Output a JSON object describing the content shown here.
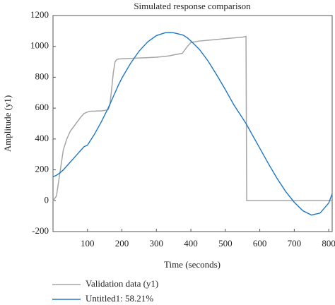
{
  "chart_data": {
    "type": "line",
    "title": "Simulated response comparison",
    "xlabel": "Time (seconds)",
    "ylabel": "Amplitude (y1)",
    "x": [
      0,
      10,
      20,
      30,
      40,
      50,
      60,
      70,
      80,
      90,
      100,
      110,
      120,
      130,
      140,
      150,
      160,
      165,
      170,
      175,
      180,
      185,
      190,
      200,
      225,
      250,
      275,
      300,
      325,
      340,
      350,
      375,
      380,
      390,
      400,
      425,
      450,
      475,
      500,
      525,
      550,
      560,
      562,
      575,
      600,
      625,
      650,
      675,
      700,
      725,
      750,
      775,
      800,
      810
    ],
    "series": [
      {
        "name": "Validation data (y1)",
        "color": "#a6a6a6",
        "values": [
          0,
          30,
          180,
          330,
          400,
          450,
          480,
          510,
          540,
          565,
          575,
          580,
          580,
          582,
          582,
          585,
          590,
          620,
          720,
          830,
          900,
          915,
          918,
          920,
          922,
          925,
          927,
          930,
          935,
          940,
          945,
          955,
          970,
          1000,
          1025,
          1035,
          1040,
          1045,
          1050,
          1055,
          1060,
          1065,
          0,
          0,
          0,
          0,
          0,
          0,
          0,
          0,
          0,
          0,
          0,
          0
        ]
      },
      {
        "name": "Untitled1: 58.21%",
        "color": "#1f77c4",
        "values": [
          155,
          165,
          180,
          200,
          225,
          250,
          275,
          300,
          325,
          350,
          360,
          395,
          430,
          470,
          510,
          555,
          600,
          625,
          650,
          675,
          700,
          725,
          750,
          795,
          890,
          970,
          1030,
          1070,
          1088,
          1090,
          1088,
          1075,
          1070,
          1055,
          1035,
          980,
          905,
          815,
          720,
          620,
          535,
          500,
          492,
          440,
          340,
          240,
          145,
          60,
          -10,
          -65,
          -93,
          -80,
          -15,
          45
        ]
      }
    ],
    "xlim": [
      0,
      810
    ],
    "ylim": [
      -200,
      1200
    ],
    "xticks": [
      100,
      200,
      300,
      400,
      500,
      600,
      700,
      800
    ],
    "yticks": [
      -200,
      0,
      200,
      400,
      600,
      800,
      1000,
      1200
    ]
  }
}
